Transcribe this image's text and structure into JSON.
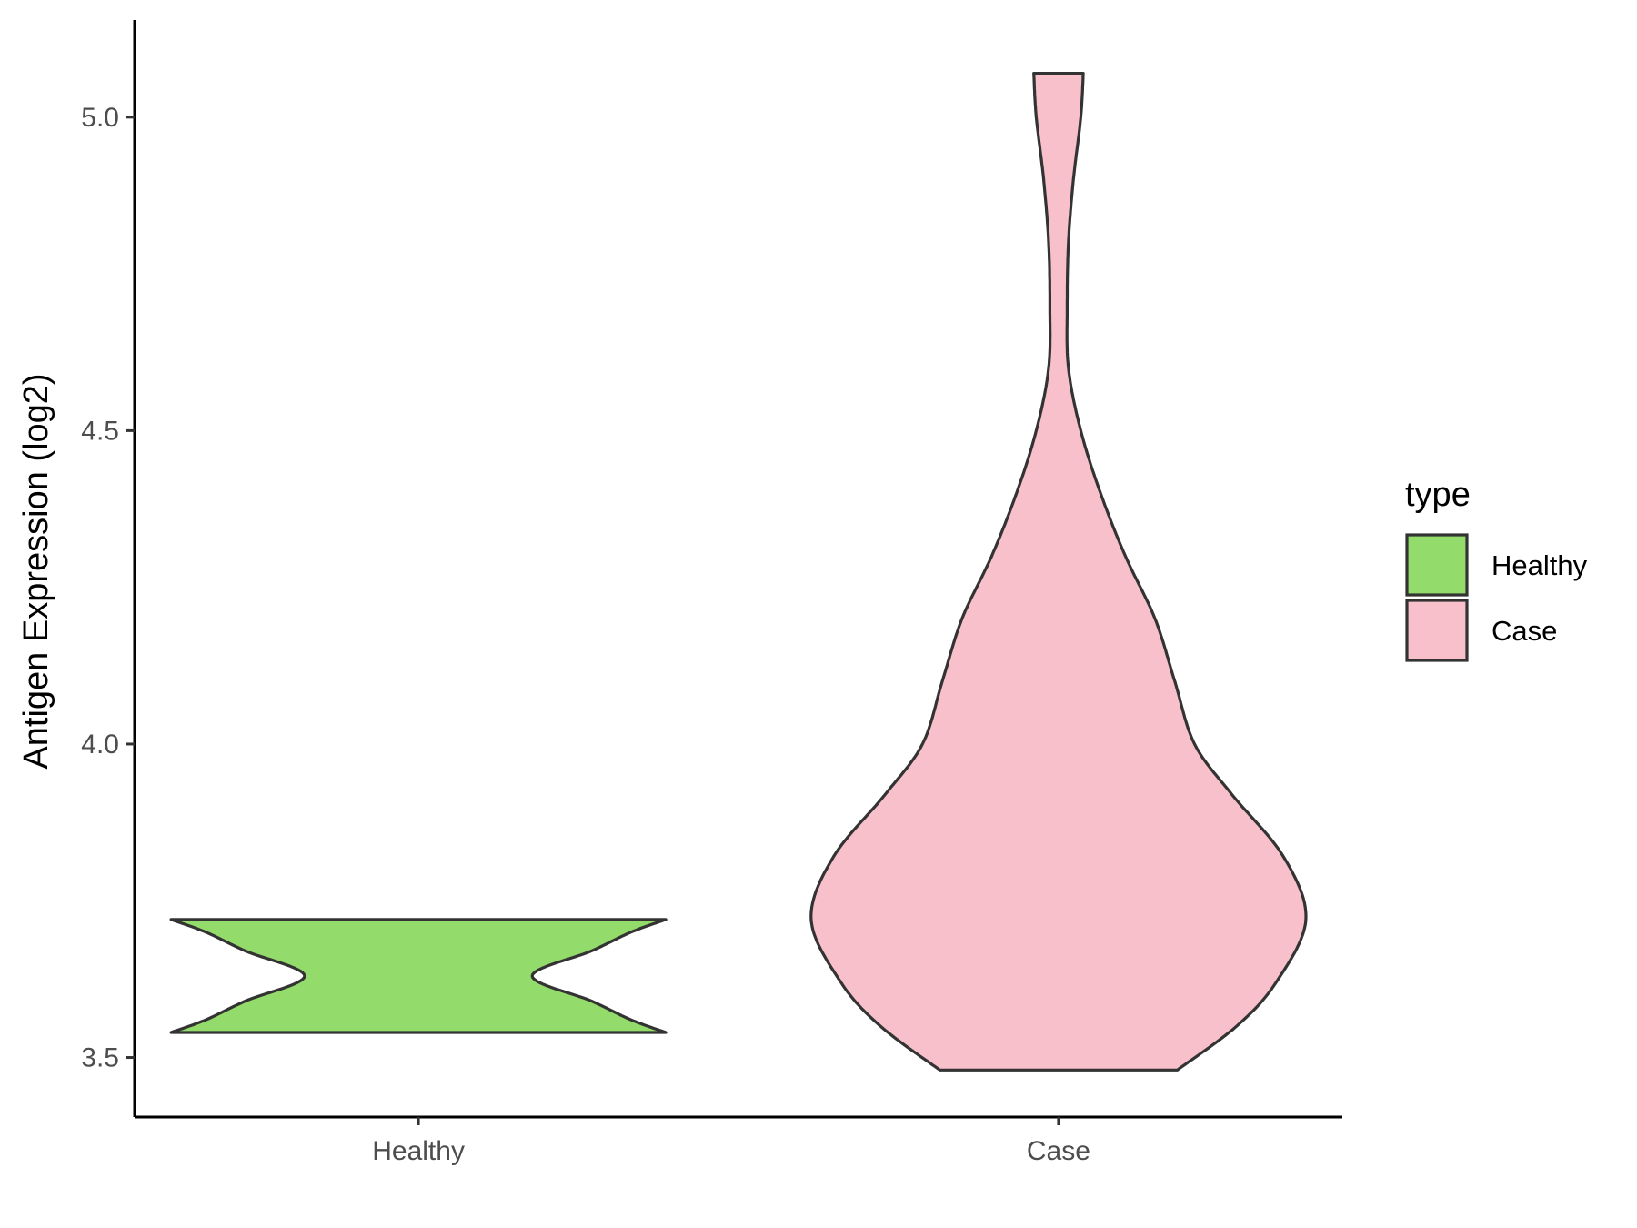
{
  "chart_data": {
    "type": "violin",
    "title": "",
    "xlabel": "",
    "ylabel": "Antigen Expression (log2)",
    "ylim": [
      3.405,
      5.155
    ],
    "yticks": [
      3.5,
      4.0,
      4.5,
      5.0
    ],
    "ytick_labels": [
      "3.5",
      "4.0",
      "4.5",
      "5.0"
    ],
    "categories": [
      "Healthy",
      "Case"
    ],
    "grid": false,
    "legend": {
      "title": "type",
      "placement": "right",
      "entries": [
        "Healthy",
        "Case"
      ]
    },
    "series": [
      {
        "name": "Healthy",
        "color": "#93db6a",
        "y_min": 3.54,
        "y_max": 3.72,
        "density_profile": [
          [
            3.54,
            1.0
          ],
          [
            3.56,
            0.86
          ],
          [
            3.59,
            0.7
          ],
          [
            3.63,
            0.46
          ],
          [
            3.67,
            0.7
          ],
          [
            3.7,
            0.86
          ],
          [
            3.72,
            1.0
          ]
        ]
      },
      {
        "name": "Case",
        "color": "#f8c0cb",
        "y_min": 3.48,
        "y_max": 5.07,
        "density_profile": [
          [
            3.48,
            0.48
          ],
          [
            3.55,
            0.72
          ],
          [
            3.62,
            0.88
          ],
          [
            3.72,
            1.0
          ],
          [
            3.82,
            0.91
          ],
          [
            3.92,
            0.7
          ],
          [
            4.0,
            0.55
          ],
          [
            4.1,
            0.47
          ],
          [
            4.2,
            0.39
          ],
          [
            4.3,
            0.27
          ],
          [
            4.4,
            0.17
          ],
          [
            4.5,
            0.09
          ],
          [
            4.6,
            0.04
          ],
          [
            4.7,
            0.035
          ],
          [
            4.8,
            0.04
          ],
          [
            4.9,
            0.06
          ],
          [
            5.0,
            0.09
          ],
          [
            5.07,
            0.1
          ]
        ]
      }
    ]
  }
}
